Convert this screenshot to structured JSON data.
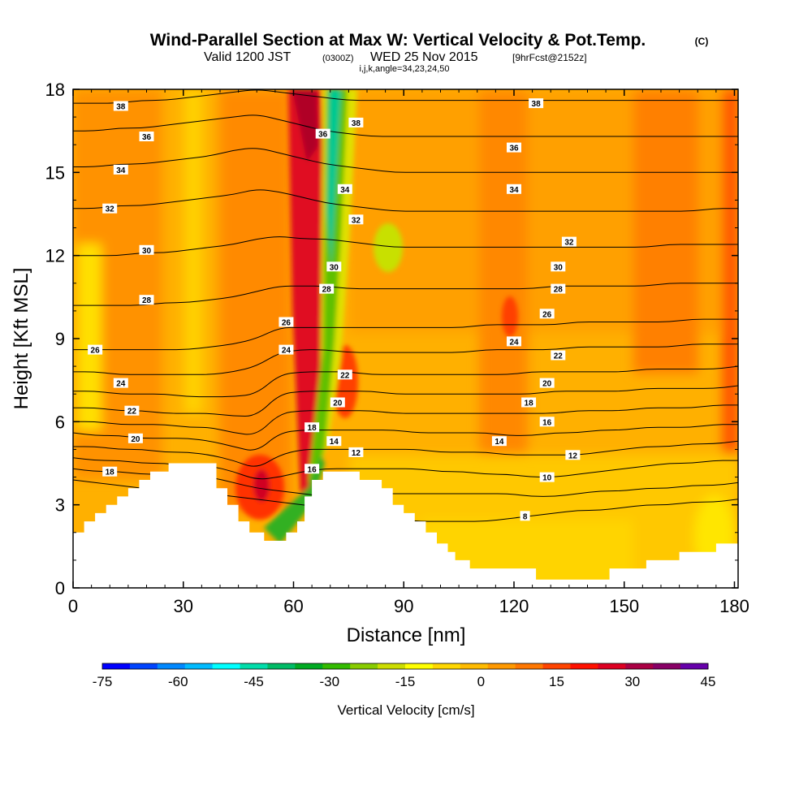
{
  "chart_data": {
    "type": "heatmap",
    "title": "Wind-Parallel Section at Max W: Vertical Velocity & Pot.Temp.",
    "title_mark": "(C)",
    "subtitle_parts": [
      "Valid 1200 JST",
      "(0300Z)",
      "WED 25 Nov 2015",
      "[9hrFcst@2152z]"
    ],
    "subtitle2": "i,j,k,angle=34,23,24,50",
    "xlabel": "Distance [nm]",
    "ylabel": "Height [Kft MSL]",
    "xlim": [
      0,
      181
    ],
    "ylim": [
      0,
      18
    ],
    "x_ticks": [
      0,
      30,
      60,
      90,
      120,
      150,
      180
    ],
    "y_ticks": [
      0,
      3,
      6,
      9,
      12,
      15,
      18
    ],
    "colorbar": {
      "title": "Vertical Velocity [cm/s]",
      "tick_labels": [
        "-75",
        "-60",
        "-45",
        "-30",
        "-15",
        "0",
        "15",
        "30",
        "45"
      ],
      "colors": [
        "#0000ff",
        "#0044ff",
        "#0088ff",
        "#00bbff",
        "#00ffff",
        "#00ddaa",
        "#00bb66",
        "#00aa22",
        "#33bb00",
        "#88cc00",
        "#ccdd00",
        "#ffff00",
        "#ffd700",
        "#ffbb00",
        "#ff9900",
        "#ff7700",
        "#ff4400",
        "#ff1100",
        "#dd0022",
        "#aa0044",
        "#880066",
        "#6600aa"
      ]
    },
    "terrain": [
      [
        0,
        2.0
      ],
      [
        3,
        2.0
      ],
      [
        3,
        2.4
      ],
      [
        6,
        2.4
      ],
      [
        6,
        2.7
      ],
      [
        9,
        2.7
      ],
      [
        9,
        3.0
      ],
      [
        12,
        3.0
      ],
      [
        12,
        3.3
      ],
      [
        15,
        3.3
      ],
      [
        15,
        3.6
      ],
      [
        18,
        3.6
      ],
      [
        18,
        3.9
      ],
      [
        21,
        3.9
      ],
      [
        21,
        4.2
      ],
      [
        26,
        4.2
      ],
      [
        26,
        4.5
      ],
      [
        39,
        4.5
      ],
      [
        39,
        3.6
      ],
      [
        42,
        3.6
      ],
      [
        42,
        3.0
      ],
      [
        45,
        3.0
      ],
      [
        45,
        2.4
      ],
      [
        48,
        2.4
      ],
      [
        48,
        2.0
      ],
      [
        52,
        2.0
      ],
      [
        52,
        1.7
      ],
      [
        58,
        1.7
      ],
      [
        58,
        2.0
      ],
      [
        61,
        2.0
      ],
      [
        61,
        2.4
      ],
      [
        63,
        2.4
      ],
      [
        63,
        3.3
      ],
      [
        65,
        3.3
      ],
      [
        65,
        3.9
      ],
      [
        68,
        3.9
      ],
      [
        68,
        4.2
      ],
      [
        78,
        4.2
      ],
      [
        78,
        3.9
      ],
      [
        84,
        3.9
      ],
      [
        84,
        3.6
      ],
      [
        87,
        3.6
      ],
      [
        87,
        3.0
      ],
      [
        90,
        3.0
      ],
      [
        90,
        2.7
      ],
      [
        93,
        2.7
      ],
      [
        93,
        2.4
      ],
      [
        96,
        2.4
      ],
      [
        96,
        2.0
      ],
      [
        99,
        2.0
      ],
      [
        99,
        1.6
      ],
      [
        102,
        1.6
      ],
      [
        102,
        1.3
      ],
      [
        104,
        1.3
      ],
      [
        104,
        1.0
      ],
      [
        108,
        1.0
      ],
      [
        108,
        0.7
      ],
      [
        126,
        0.7
      ],
      [
        126,
        0.3
      ],
      [
        146,
        0.3
      ],
      [
        146,
        0.7
      ],
      [
        156,
        0.7
      ],
      [
        156,
        1.0
      ],
      [
        165,
        1.0
      ],
      [
        165,
        1.3
      ],
      [
        175,
        1.3
      ],
      [
        175,
        1.6
      ],
      [
        181,
        1.6
      ]
    ],
    "theta_contours": [
      {
        "level": 8,
        "z": [
          3.9,
          3.8,
          3.7,
          3.6,
          3.5,
          3.4,
          3.4,
          3.3,
          3.2,
          3.1,
          3.0,
          2.9,
          2.8,
          2.6,
          2.5,
          2.4,
          2.4,
          2.4,
          2.4,
          2.5,
          2.6,
          2.7,
          2.8,
          2.8,
          2.9,
          3.0,
          3.0,
          3.1,
          3.1,
          3.2
        ]
      },
      {
        "level": 10,
        "z": [
          4.3,
          4.2,
          4.2,
          4.1,
          4.1,
          4.0,
          4.0,
          3.8,
          3.6,
          3.5,
          3.4,
          3.3,
          3.3,
          3.4,
          3.4,
          3.4,
          3.4,
          3.4,
          3.4,
          3.4,
          3.3,
          3.3,
          3.4,
          3.5,
          3.5,
          3.6,
          3.6,
          3.7,
          3.7,
          3.8
        ]
      },
      {
        "level": 12,
        "z": [
          4.7,
          4.6,
          4.6,
          4.5,
          4.5,
          4.4,
          4.4,
          4.2,
          3.9,
          4.0,
          4.2,
          4.3,
          4.3,
          4.3,
          4.3,
          4.3,
          4.2,
          4.2,
          4.1,
          4.1,
          4.0,
          4.0,
          4.1,
          4.2,
          4.3,
          4.4,
          4.5,
          4.5,
          4.6,
          4.6
        ]
      },
      {
        "level": 14,
        "z": [
          5.1,
          5.1,
          5.0,
          5.0,
          4.9,
          4.9,
          4.8,
          4.6,
          4.3,
          4.8,
          5.0,
          5.0,
          5.0,
          5.0,
          5.0,
          5.0,
          4.9,
          4.9,
          4.9,
          4.8,
          4.8,
          4.8,
          4.8,
          4.9,
          5.0,
          5.1,
          5.1,
          5.2,
          5.2,
          5.3
        ]
      },
      {
        "level": 16,
        "z": [
          5.6,
          5.5,
          5.5,
          5.4,
          5.4,
          5.4,
          5.3,
          5.1,
          4.9,
          5.6,
          5.7,
          5.7,
          5.7,
          5.7,
          5.7,
          5.6,
          5.6,
          5.6,
          5.6,
          5.5,
          5.5,
          5.6,
          5.6,
          5.7,
          5.7,
          5.8,
          5.8,
          5.8,
          5.9,
          5.9
        ]
      },
      {
        "level": 18,
        "z": [
          6.0,
          6.0,
          5.9,
          5.9,
          5.9,
          5.8,
          5.8,
          5.6,
          5.5,
          6.3,
          6.4,
          6.4,
          6.4,
          6.4,
          6.3,
          6.3,
          6.3,
          6.3,
          6.3,
          6.3,
          6.3,
          6.3,
          6.4,
          6.4,
          6.4,
          6.5,
          6.5,
          6.5,
          6.6,
          6.6
        ]
      },
      {
        "level": 20,
        "z": [
          6.5,
          6.5,
          6.4,
          6.4,
          6.3,
          6.3,
          6.3,
          6.2,
          6.2,
          7.0,
          7.1,
          7.1,
          7.1,
          7.1,
          7.0,
          7.0,
          7.0,
          7.0,
          7.0,
          7.0,
          7.0,
          7.1,
          7.1,
          7.1,
          7.1,
          7.2,
          7.2,
          7.2,
          7.2,
          7.3
        ]
      },
      {
        "level": 22,
        "z": [
          7.1,
          7.1,
          7.0,
          7.0,
          7.0,
          6.9,
          6.9,
          6.9,
          7.0,
          7.7,
          7.8,
          7.8,
          7.8,
          7.7,
          7.7,
          7.7,
          7.7,
          7.7,
          7.7,
          7.7,
          7.8,
          7.8,
          7.8,
          7.8,
          7.8,
          7.9,
          7.9,
          7.9,
          7.9,
          8.0
        ]
      },
      {
        "level": 24,
        "z": [
          7.8,
          7.8,
          7.7,
          7.7,
          7.7,
          7.7,
          7.7,
          7.8,
          8.0,
          8.5,
          8.6,
          8.6,
          8.5,
          8.5,
          8.5,
          8.5,
          8.5,
          8.5,
          8.6,
          8.6,
          8.6,
          8.6,
          8.7,
          8.7,
          8.7,
          8.7,
          8.7,
          8.8,
          8.8,
          8.8
        ]
      },
      {
        "level": 26,
        "z": [
          8.6,
          8.6,
          8.6,
          8.6,
          8.6,
          8.6,
          8.7,
          8.8,
          9.0,
          9.4,
          9.4,
          9.4,
          9.4,
          9.4,
          9.4,
          9.4,
          9.4,
          9.4,
          9.5,
          9.5,
          9.5,
          9.5,
          9.6,
          9.6,
          9.6,
          9.6,
          9.6,
          9.7,
          9.7,
          9.7
        ]
      },
      {
        "level": 28,
        "z": [
          10.2,
          10.2,
          10.2,
          10.2,
          10.3,
          10.3,
          10.4,
          10.5,
          10.7,
          10.9,
          10.9,
          10.9,
          10.8,
          10.8,
          10.8,
          10.8,
          10.8,
          10.8,
          10.8,
          10.8,
          10.8,
          10.9,
          10.9,
          10.9,
          10.9,
          10.9,
          11.0,
          11.0,
          11.0,
          11.0
        ]
      },
      {
        "level": 30,
        "z": [
          12.0,
          12.0,
          12.0,
          12.1,
          12.1,
          12.2,
          12.3,
          12.4,
          12.6,
          12.7,
          12.6,
          12.6,
          12.5,
          12.4,
          12.3,
          12.3,
          12.3,
          12.3,
          12.3,
          12.3,
          12.3,
          12.3,
          12.3,
          12.3,
          12.3,
          12.3,
          12.4,
          12.4,
          12.4,
          12.4
        ]
      },
      {
        "level": 32,
        "z": [
          13.7,
          13.7,
          13.8,
          13.8,
          13.9,
          14.0,
          14.1,
          14.2,
          14.4,
          14.3,
          14.1,
          13.9,
          13.8,
          13.7,
          13.6,
          13.6,
          13.6,
          13.6,
          13.6,
          13.6,
          13.6,
          13.6,
          13.6,
          13.6,
          13.6,
          13.6,
          13.6,
          13.6,
          13.7,
          13.7
        ]
      },
      {
        "level": 34,
        "z": [
          15.2,
          15.2,
          15.3,
          15.3,
          15.4,
          15.5,
          15.6,
          15.8,
          15.9,
          15.7,
          15.5,
          15.3,
          15.2,
          15.1,
          15.0,
          15.0,
          15.0,
          15.0,
          15.0,
          15.0,
          15.0,
          15.0,
          15.0,
          15.0,
          15.0,
          15.0,
          15.0,
          15.0,
          15.0,
          15.0
        ]
      },
      {
        "level": 36,
        "z": [
          16.5,
          16.5,
          16.6,
          16.6,
          16.7,
          16.8,
          16.9,
          17.0,
          17.1,
          16.9,
          16.7,
          16.5,
          16.4,
          16.3,
          16.3,
          16.3,
          16.3,
          16.3,
          16.3,
          16.3,
          16.3,
          16.3,
          16.3,
          16.3,
          16.3,
          16.3,
          16.3,
          16.3,
          16.3,
          16.3
        ]
      },
      {
        "level": 38,
        "z": [
          17.5,
          17.5,
          17.5,
          17.6,
          17.6,
          17.7,
          17.8,
          17.9,
          18.0,
          17.9,
          17.8,
          17.7,
          17.6,
          17.6,
          17.6,
          17.6,
          17.6,
          17.6,
          17.6,
          17.6,
          17.6,
          17.6,
          17.6,
          17.6,
          17.6,
          17.6,
          17.6,
          17.6,
          17.6,
          17.6
        ]
      }
    ],
    "contour_labels": [
      {
        "text": "38",
        "x": 13,
        "y": 17.4
      },
      {
        "text": "36",
        "x": 20,
        "y": 16.3
      },
      {
        "text": "34",
        "x": 13,
        "y": 15.1
      },
      {
        "text": "32",
        "x": 10,
        "y": 13.7
      },
      {
        "text": "30",
        "x": 20,
        "y": 12.2
      },
      {
        "text": "28",
        "x": 20,
        "y": 10.4
      },
      {
        "text": "26",
        "x": 6,
        "y": 8.6
      },
      {
        "text": "24",
        "x": 13,
        "y": 7.4
      },
      {
        "text": "22",
        "x": 16,
        "y": 6.4
      },
      {
        "text": "20",
        "x": 17,
        "y": 5.4
      },
      {
        "text": "18",
        "x": 10,
        "y": 4.2
      },
      {
        "text": "26",
        "x": 58,
        "y": 9.6
      },
      {
        "text": "24",
        "x": 58,
        "y": 8.6
      },
      {
        "text": "18",
        "x": 65,
        "y": 5.8
      },
      {
        "text": "16",
        "x": 65,
        "y": 4.3
      },
      {
        "text": "14",
        "x": 71,
        "y": 5.3
      },
      {
        "text": "20",
        "x": 72,
        "y": 6.7
      },
      {
        "text": "22",
        "x": 74,
        "y": 7.7
      },
      {
        "text": "28",
        "x": 69,
        "y": 10.8
      },
      {
        "text": "30",
        "x": 71,
        "y": 11.6
      },
      {
        "text": "32",
        "x": 77,
        "y": 13.3
      },
      {
        "text": "34",
        "x": 74,
        "y": 14.4
      },
      {
        "text": "36",
        "x": 68,
        "y": 16.4
      },
      {
        "text": "38",
        "x": 77,
        "y": 16.8
      },
      {
        "text": "12",
        "x": 77,
        "y": 4.9
      },
      {
        "text": "38",
        "x": 126,
        "y": 17.5
      },
      {
        "text": "36",
        "x": 120,
        "y": 15.9
      },
      {
        "text": "34",
        "x": 120,
        "y": 14.4
      },
      {
        "text": "32",
        "x": 135,
        "y": 12.5
      },
      {
        "text": "30",
        "x": 132,
        "y": 11.6
      },
      {
        "text": "28",
        "x": 132,
        "y": 10.8
      },
      {
        "text": "26",
        "x": 129,
        "y": 9.9
      },
      {
        "text": "24",
        "x": 120,
        "y": 8.9
      },
      {
        "text": "22",
        "x": 132,
        "y": 8.4
      },
      {
        "text": "20",
        "x": 129,
        "y": 7.4
      },
      {
        "text": "18",
        "x": 124,
        "y": 6.7
      },
      {
        "text": "16",
        "x": 129,
        "y": 6.0
      },
      {
        "text": "14",
        "x": 116,
        "y": 5.3
      },
      {
        "text": "12",
        "x": 136,
        "y": 4.8
      },
      {
        "text": "10",
        "x": 129,
        "y": 4.0
      },
      {
        "text": "8",
        "x": 123,
        "y": 2.6
      }
    ]
  }
}
